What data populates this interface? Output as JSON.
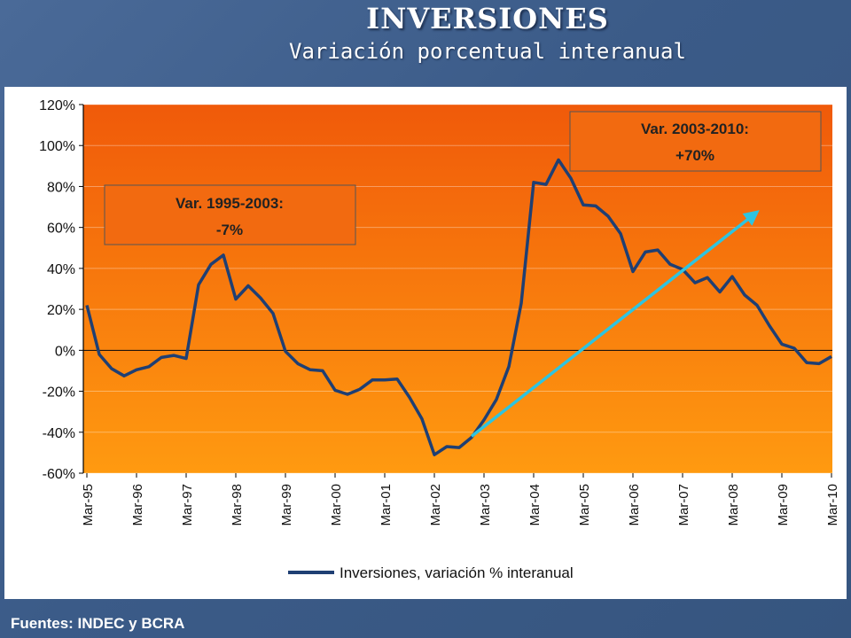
{
  "slide": {
    "title": "INVERSIONES",
    "subtitle": "Variación porcentual interanual",
    "footer": "Fuentes: INDEC y BCRA"
  },
  "colors": {
    "plot_top": "#f05a0a",
    "plot_bottom": "#ff9a10",
    "series_line": "#1f3f73",
    "trend_arrow": "#2ec4e0",
    "annotation_fill": "#f26a10",
    "annotation_border": "#555555"
  },
  "chart_data": {
    "type": "line",
    "title": "",
    "xlabel": "",
    "ylabel": "",
    "ylim": [
      -0.6,
      1.2
    ],
    "yticks": [
      1.2,
      1.0,
      0.8,
      0.6,
      0.4,
      0.2,
      0.0,
      -0.2,
      -0.4,
      -0.6
    ],
    "ytick_labels": [
      "120%",
      "100%",
      "80%",
      "60%",
      "40%",
      "20%",
      "0%",
      "-20%",
      "-40%",
      "-60%"
    ],
    "xticks": [
      "Mar-95",
      "Mar-96",
      "Mar-97",
      "Mar-98",
      "Mar-99",
      "Mar-00",
      "Mar-01",
      "Mar-02",
      "Mar-03",
      "Mar-04",
      "Mar-05",
      "Mar-06",
      "Mar-07",
      "Mar-08",
      "Mar-09",
      "Mar-10"
    ],
    "x_range": [
      1995.0,
      2010.0
    ],
    "grid": true,
    "legend": "bottom",
    "series": [
      {
        "name": "Inversiones, variación % interanual",
        "x": [
          1995.0,
          1995.25,
          1995.5,
          1995.75,
          1996.0,
          1996.25,
          1996.5,
          1996.75,
          1997.0,
          1997.25,
          1997.5,
          1997.75,
          1998.0,
          1998.25,
          1998.5,
          1998.75,
          1999.0,
          1999.25,
          1999.5,
          1999.75,
          2000.0,
          2000.25,
          2000.5,
          2000.75,
          2001.0,
          2001.25,
          2001.5,
          2001.75,
          2002.0,
          2002.25,
          2002.5,
          2002.75,
          2003.0,
          2003.25,
          2003.5,
          2003.75,
          2004.0,
          2004.25,
          2004.5,
          2004.75,
          2005.0,
          2005.25,
          2005.5,
          2005.75,
          2006.0,
          2006.25,
          2006.5,
          2006.75,
          2007.0,
          2007.25,
          2007.5,
          2007.75,
          2008.0,
          2008.25,
          2008.5,
          2008.75,
          2009.0,
          2009.25,
          2009.5,
          2009.75,
          2010.0
        ],
        "values": [
          0.22,
          -0.02,
          -0.09,
          -0.125,
          -0.095,
          -0.08,
          -0.035,
          -0.025,
          -0.04,
          0.32,
          0.42,
          0.465,
          0.25,
          0.315,
          0.255,
          0.18,
          -0.005,
          -0.065,
          -0.095,
          -0.1,
          -0.195,
          -0.215,
          -0.19,
          -0.145,
          -0.145,
          -0.14,
          -0.23,
          -0.335,
          -0.51,
          -0.47,
          -0.475,
          -0.425,
          -0.34,
          -0.24,
          -0.08,
          0.23,
          0.82,
          0.81,
          0.93,
          0.84,
          0.71,
          0.705,
          0.655,
          0.57,
          0.385,
          0.48,
          0.49,
          0.42,
          0.395,
          0.33,
          0.355,
          0.285,
          0.36,
          0.27,
          0.22,
          0.12,
          0.03,
          0.01,
          -0.06,
          -0.065,
          -0.03
        ]
      }
    ],
    "trend_arrow": {
      "from": [
        2002.75,
        -0.42
      ],
      "to": [
        2008.5,
        0.675
      ]
    },
    "annotations": [
      {
        "lines": [
          "Var. 1995-2003:",
          "-7%"
        ]
      },
      {
        "lines": [
          "Var. 2003-2010:",
          "+70%"
        ]
      }
    ]
  }
}
